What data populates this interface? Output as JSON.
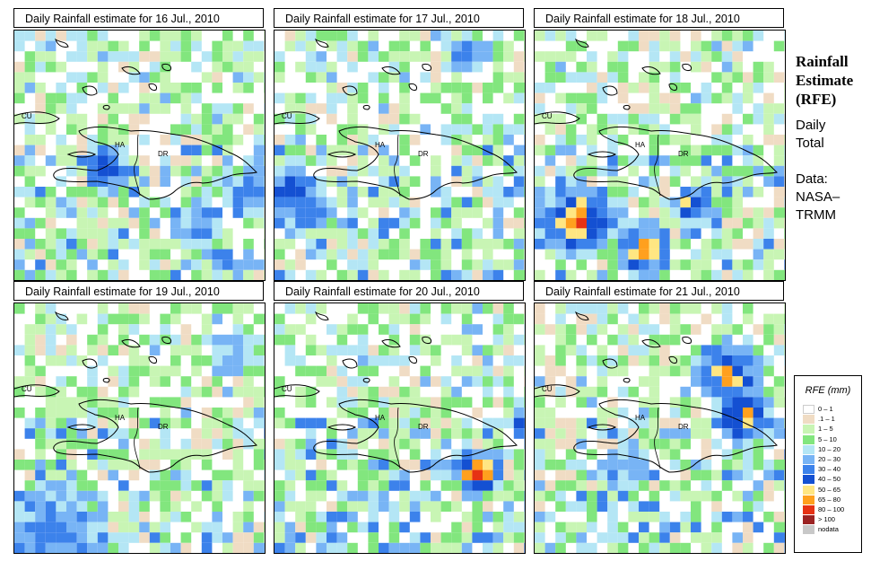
{
  "panels": [
    {
      "title": "Daily Rainfall estimate for  16 Jul., 2010",
      "seed": 16,
      "hotspot": "southhaiti"
    },
    {
      "title": "Daily Rainfall estimate for  17 Jul., 2010",
      "seed": 17,
      "hotspot": "west"
    },
    {
      "title": "Daily Rainfall estimate for  18 Jul., 2010",
      "seed": 18,
      "hotspot": "southwest"
    },
    {
      "title": "Daily Rainfall estimate for  19 Jul., 2010",
      "seed": 19,
      "hotspot": "lowsw"
    },
    {
      "title": "Daily Rainfall estimate for  20 Jul., 2010",
      "seed": 20,
      "hotspot": "south"
    },
    {
      "title": "Daily Rainfall estimate for  21 Jul., 2010",
      "seed": 21,
      "hotspot": "northeast"
    }
  ],
  "map_labels": {
    "cuba": "CU",
    "haiti": "HA",
    "dominican_republic": "DR"
  },
  "side": {
    "title_line1": "Rainfall",
    "title_line2": "Estimate",
    "title_line3": "(RFE)",
    "period_line1": "Daily",
    "period_line2": "Total",
    "source_line1": "Data:",
    "source_line2": "NASA–",
    "source_line3": "TRMM"
  },
  "legend": {
    "title": "RFE (mm)",
    "items": [
      {
        "label": "0 – 1",
        "color": "#ffffff"
      },
      {
        "label": ".1 – 1",
        "color": "#f0dcc4"
      },
      {
        "label": "1 – 5",
        "color": "#c8f5b4"
      },
      {
        "label": "5 – 10",
        "color": "#82e67e"
      },
      {
        "label": "10 – 20",
        "color": "#b4e6f5"
      },
      {
        "label": "20 – 30",
        "color": "#78b4f5"
      },
      {
        "label": "30 – 40",
        "color": "#3c82eb"
      },
      {
        "label": "40 – 50",
        "color": "#1450d2"
      },
      {
        "label": "50 – 65",
        "color": "#ffe682"
      },
      {
        "label": "65 – 80",
        "color": "#ffa01e"
      },
      {
        "label": "80 – 100",
        "color": "#e63214"
      },
      {
        "label": "> 100",
        "color": "#9b2323"
      },
      {
        "label": "nodata",
        "color": "#c8c8c8"
      }
    ]
  }
}
